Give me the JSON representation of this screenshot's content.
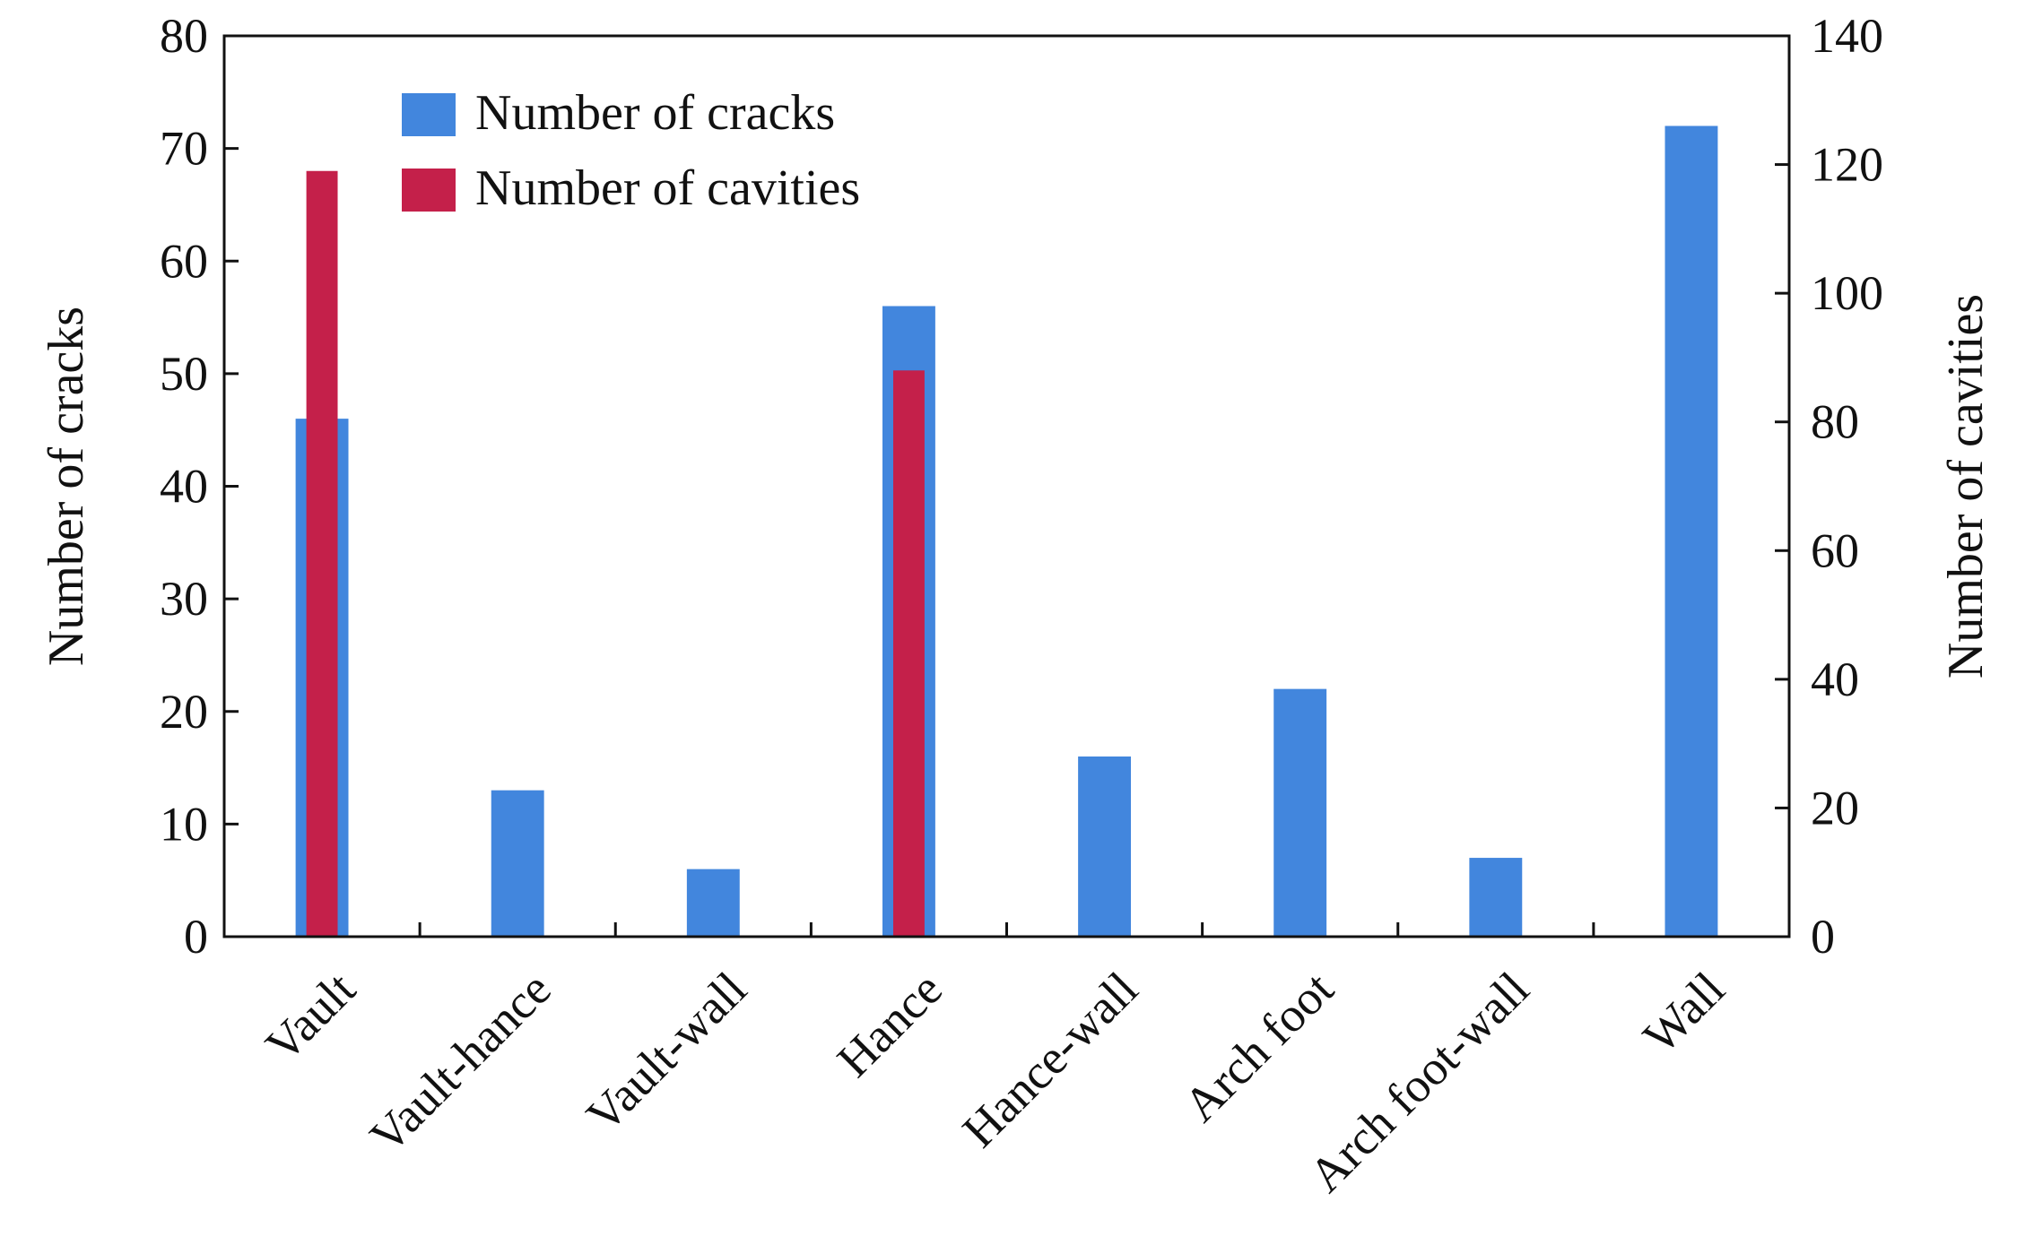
{
  "chart_data": {
    "type": "bar",
    "categories": [
      "Vault",
      "Vault-hance",
      "Vault-wall",
      "Hance",
      "Hance-wall",
      "Arch foot",
      "Arch foot-wall",
      "Wall"
    ],
    "series": [
      {
        "name": "Number of cracks",
        "axis": "left",
        "color": "#4286DD",
        "values": [
          46,
          13,
          6,
          56,
          16,
          22,
          7,
          72
        ]
      },
      {
        "name": "Number of cavities",
        "axis": "right",
        "color": "#C4204A",
        "values": [
          119,
          null,
          null,
          88,
          null,
          null,
          null,
          null
        ]
      }
    ],
    "ylabel_left": "Number of cracks",
    "ylabel_right": "Number of cavities",
    "ylim_left": [
      0,
      80
    ],
    "ylim_right": [
      0,
      140
    ],
    "yticks_left": [
      "0",
      "10",
      "20",
      "30",
      "40",
      "50",
      "60",
      "70",
      "80"
    ],
    "yticks_right": [
      "0",
      "20",
      "40",
      "60",
      "80",
      "100",
      "120",
      "140"
    ],
    "legend": {
      "placement": "top-left",
      "entries": [
        {
          "label": "Number of cracks",
          "color": "#4286DD"
        },
        {
          "label": "Number of cavities",
          "color": "#C4204A"
        }
      ]
    },
    "grid": false
  }
}
